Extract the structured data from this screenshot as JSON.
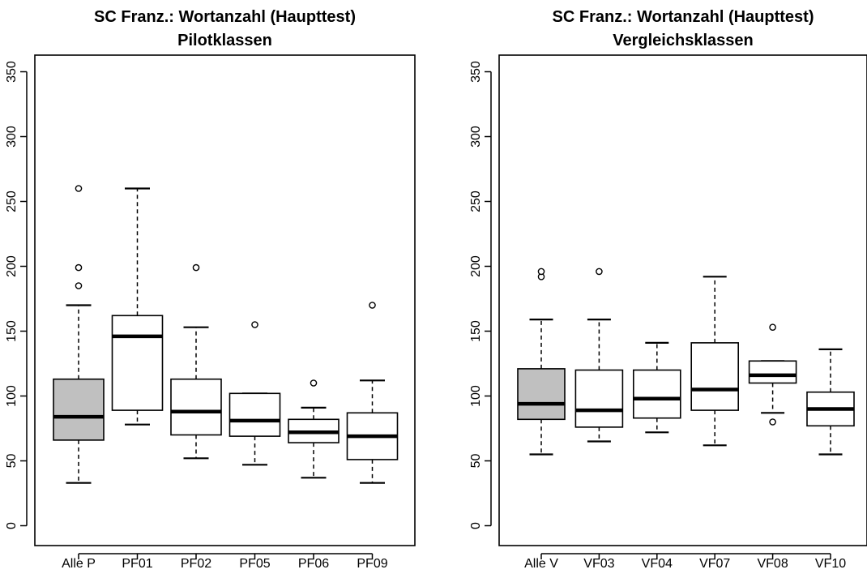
{
  "chart_data": [
    {
      "type": "boxplot",
      "title": "SC Franz.: Wortanzahl (Haupttest)",
      "subtitle": "Pilotklassen",
      "xlabel": "",
      "ylabel": "",
      "ylim": [
        0,
        360
      ],
      "yticks": [
        0,
        50,
        100,
        150,
        200,
        250,
        300,
        350
      ],
      "grid": false,
      "categories": [
        "Alle P",
        "PF01",
        "PF02",
        "PF05",
        "PF06",
        "PF09"
      ],
      "boxes": [
        {
          "label": "Alle P",
          "whisker_low": 33,
          "q1": 66,
          "median": 84,
          "q3": 113,
          "whisker_high": 170,
          "outliers": [
            185,
            199,
            260
          ],
          "fill": "#c0c0c0"
        },
        {
          "label": "PF01",
          "whisker_low": 78,
          "q1": 89,
          "median": 146,
          "q3": 162,
          "whisker_high": 260,
          "outliers": [],
          "fill": "#ffffff"
        },
        {
          "label": "PF02",
          "whisker_low": 52,
          "q1": 70,
          "median": 88,
          "q3": 113,
          "whisker_high": 153,
          "outliers": [
            199
          ],
          "fill": "#ffffff"
        },
        {
          "label": "PF05",
          "whisker_low": 47,
          "q1": 69,
          "median": 81,
          "q3": 102,
          "whisker_high": 102,
          "outliers": [
            155
          ],
          "fill": "#ffffff"
        },
        {
          "label": "PF06",
          "whisker_low": 37,
          "q1": 64,
          "median": 72,
          "q3": 82,
          "whisker_high": 91,
          "outliers": [
            110
          ],
          "fill": "#ffffff"
        },
        {
          "label": "PF09",
          "whisker_low": 33,
          "q1": 51,
          "median": 69,
          "q3": 87,
          "whisker_high": 112,
          "outliers": [
            170
          ],
          "fill": "#ffffff"
        }
      ]
    },
    {
      "type": "boxplot",
      "title": "SC Franz.: Wortanzahl (Haupttest)",
      "subtitle": "Vergleichsklassen",
      "xlabel": "",
      "ylabel": "",
      "ylim": [
        0,
        360
      ],
      "yticks": [
        0,
        50,
        100,
        150,
        200,
        250,
        300,
        350
      ],
      "grid": false,
      "categories": [
        "Alle V",
        "VF03",
        "VF04",
        "VF07",
        "VF08",
        "VF10"
      ],
      "boxes": [
        {
          "label": "Alle V",
          "whisker_low": 55,
          "q1": 82,
          "median": 94,
          "q3": 121,
          "whisker_high": 159,
          "outliers": [
            192,
            196
          ],
          "fill": "#c0c0c0"
        },
        {
          "label": "VF03",
          "whisker_low": 65,
          "q1": 76,
          "median": 89,
          "q3": 120,
          "whisker_high": 159,
          "outliers": [
            196
          ],
          "fill": "#ffffff"
        },
        {
          "label": "VF04",
          "whisker_low": 72,
          "q1": 83,
          "median": 98,
          "q3": 120,
          "whisker_high": 141,
          "outliers": [],
          "fill": "#ffffff"
        },
        {
          "label": "VF07",
          "whisker_low": 62,
          "q1": 89,
          "median": 105,
          "q3": 141,
          "whisker_high": 192,
          "outliers": [],
          "fill": "#ffffff"
        },
        {
          "label": "VF08",
          "whisker_low": 87,
          "q1": 110,
          "median": 116,
          "q3": 127,
          "whisker_high": 127,
          "outliers": [
            80,
            153
          ],
          "fill": "#ffffff"
        },
        {
          "label": "VF10",
          "whisker_low": 55,
          "q1": 77,
          "median": 90,
          "q3": 103,
          "whisker_high": 136,
          "outliers": [],
          "fill": "#ffffff"
        }
      ]
    }
  ]
}
